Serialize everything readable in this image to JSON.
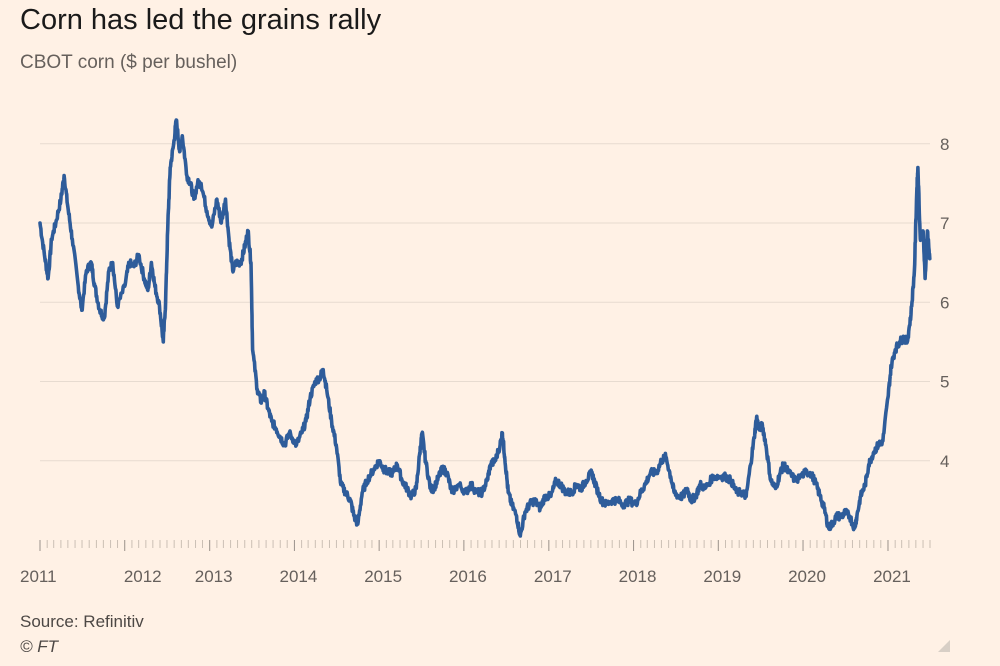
{
  "header": {
    "title": "Corn has led the grains rally",
    "subtitle": "CBOT corn ($ per bushel)"
  },
  "footer": {
    "source": "Source: Refinitiv",
    "credit": "© FT"
  },
  "colors": {
    "background": "#fff1e5",
    "line": "#2e5c9a",
    "grid": "#e7dbd0",
    "axis_text": "#66605c"
  },
  "chart_data": {
    "type": "line",
    "title": "Corn has led the grains rally",
    "ylabel": "CBOT corn ($ per bushel)",
    "xlabel": "",
    "ylim": [
      3.0,
      8.3
    ],
    "y_ticks": [
      4,
      5,
      6,
      7,
      8
    ],
    "x_ticks": [
      "2011",
      "2012",
      "2013",
      "2014",
      "2015",
      "2016",
      "2017",
      "2018",
      "2019",
      "2020",
      "2021"
    ],
    "xlim": [
      "2011-01-01",
      "2021-07-01"
    ],
    "grid": "horizontal",
    "series": [
      {
        "values": [
          [
            "2011-01-01",
            7.0
          ],
          [
            "2011-01-20",
            6.6
          ],
          [
            "2011-02-05",
            6.3
          ],
          [
            "2011-02-20",
            6.8
          ],
          [
            "2011-03-10",
            7.0
          ],
          [
            "2011-04-01",
            7.3
          ],
          [
            "2011-04-15",
            7.6
          ],
          [
            "2011-05-01",
            7.2
          ],
          [
            "2011-05-20",
            6.8
          ],
          [
            "2011-06-15",
            6.2
          ],
          [
            "2011-06-30",
            5.9
          ],
          [
            "2011-07-20",
            6.4
          ],
          [
            "2011-08-10",
            6.5
          ],
          [
            "2011-08-25",
            6.2
          ],
          [
            "2011-09-15",
            5.9
          ],
          [
            "2011-10-05",
            5.8
          ],
          [
            "2011-10-25",
            6.4
          ],
          [
            "2011-11-10",
            6.5
          ],
          [
            "2011-11-30",
            5.95
          ],
          [
            "2012-01-01",
            6.2
          ],
          [
            "2012-01-20",
            6.5
          ],
          [
            "2012-02-10",
            6.45
          ],
          [
            "2012-03-01",
            6.6
          ],
          [
            "2012-03-25",
            6.3
          ],
          [
            "2012-04-10",
            6.15
          ],
          [
            "2012-04-25",
            6.5
          ],
          [
            "2012-05-10",
            6.2
          ],
          [
            "2012-05-30",
            5.95
          ],
          [
            "2012-06-15",
            5.5
          ],
          [
            "2012-06-25",
            6.0
          ],
          [
            "2012-07-05",
            7.0
          ],
          [
            "2012-07-15",
            7.7
          ],
          [
            "2012-07-30",
            8.0
          ],
          [
            "2012-08-10",
            8.3
          ],
          [
            "2012-08-25",
            7.9
          ],
          [
            "2012-09-05",
            8.1
          ],
          [
            "2012-09-25",
            7.6
          ],
          [
            "2012-10-10",
            7.5
          ],
          [
            "2012-10-25",
            7.3
          ],
          [
            "2012-11-10",
            7.5
          ],
          [
            "2012-11-25",
            7.5
          ],
          [
            "2012-12-20",
            7.15
          ],
          [
            "2013-01-10",
            6.95
          ],
          [
            "2013-02-01",
            7.3
          ],
          [
            "2013-02-20",
            7.0
          ],
          [
            "2013-03-10",
            7.3
          ],
          [
            "2013-03-25",
            6.8
          ],
          [
            "2013-04-10",
            6.4
          ],
          [
            "2013-04-25",
            6.5
          ],
          [
            "2013-05-15",
            6.5
          ],
          [
            "2013-06-01",
            6.7
          ],
          [
            "2013-06-15",
            6.9
          ],
          [
            "2013-06-28",
            6.5
          ],
          [
            "2013-07-05",
            5.4
          ],
          [
            "2013-07-25",
            4.9
          ],
          [
            "2013-08-10",
            4.75
          ],
          [
            "2013-08-25",
            4.85
          ],
          [
            "2013-09-10",
            4.65
          ],
          [
            "2013-09-25",
            4.5
          ],
          [
            "2013-10-15",
            4.4
          ],
          [
            "2013-11-01",
            4.3
          ],
          [
            "2013-11-20",
            4.2
          ],
          [
            "2013-12-10",
            4.35
          ],
          [
            "2014-01-10",
            4.2
          ],
          [
            "2014-02-01",
            4.35
          ],
          [
            "2014-02-20",
            4.5
          ],
          [
            "2014-03-10",
            4.8
          ],
          [
            "2014-04-01",
            5.0
          ],
          [
            "2014-04-20",
            5.05
          ],
          [
            "2014-05-05",
            5.15
          ],
          [
            "2014-05-20",
            4.9
          ],
          [
            "2014-06-10",
            4.5
          ],
          [
            "2014-06-30",
            4.2
          ],
          [
            "2014-07-20",
            3.7
          ],
          [
            "2014-08-10",
            3.6
          ],
          [
            "2014-08-30",
            3.5
          ],
          [
            "2014-09-15",
            3.3
          ],
          [
            "2014-10-01",
            3.2
          ],
          [
            "2014-10-20",
            3.6
          ],
          [
            "2014-11-10",
            3.75
          ],
          [
            "2014-12-10",
            3.9
          ],
          [
            "2015-01-01",
            4.0
          ],
          [
            "2015-01-20",
            3.9
          ],
          [
            "2015-02-10",
            3.85
          ],
          [
            "2015-03-01",
            3.85
          ],
          [
            "2015-03-20",
            3.95
          ],
          [
            "2015-04-10",
            3.75
          ],
          [
            "2015-05-01",
            3.65
          ],
          [
            "2015-05-20",
            3.55
          ],
          [
            "2015-06-10",
            3.65
          ],
          [
            "2015-06-25",
            4.1
          ],
          [
            "2015-07-05",
            4.35
          ],
          [
            "2015-07-20",
            4.0
          ],
          [
            "2015-08-10",
            3.65
          ],
          [
            "2015-08-25",
            3.65
          ],
          [
            "2015-09-15",
            3.8
          ],
          [
            "2015-10-01",
            3.9
          ],
          [
            "2015-10-20",
            3.85
          ],
          [
            "2015-11-10",
            3.6
          ],
          [
            "2015-12-10",
            3.7
          ],
          [
            "2016-01-10",
            3.6
          ],
          [
            "2016-02-01",
            3.7
          ],
          [
            "2016-02-25",
            3.6
          ],
          [
            "2016-03-20",
            3.6
          ],
          [
            "2016-04-10",
            3.75
          ],
          [
            "2016-04-25",
            3.95
          ],
          [
            "2016-05-15",
            4.0
          ],
          [
            "2016-06-05",
            4.2
          ],
          [
            "2016-06-15",
            4.35
          ],
          [
            "2016-06-25",
            4.05
          ],
          [
            "2016-07-10",
            3.6
          ],
          [
            "2016-07-25",
            3.45
          ],
          [
            "2016-08-15",
            3.3
          ],
          [
            "2016-08-31",
            3.05
          ],
          [
            "2016-09-20",
            3.35
          ],
          [
            "2016-10-10",
            3.45
          ],
          [
            "2016-11-01",
            3.5
          ],
          [
            "2016-11-25",
            3.4
          ],
          [
            "2016-12-15",
            3.55
          ],
          [
            "2017-01-10",
            3.55
          ],
          [
            "2017-02-01",
            3.75
          ],
          [
            "2017-02-20",
            3.7
          ],
          [
            "2017-03-15",
            3.6
          ],
          [
            "2017-04-10",
            3.6
          ],
          [
            "2017-05-01",
            3.7
          ],
          [
            "2017-05-20",
            3.65
          ],
          [
            "2017-06-10",
            3.75
          ],
          [
            "2017-07-05",
            3.85
          ],
          [
            "2017-07-20",
            3.7
          ],
          [
            "2017-08-15",
            3.5
          ],
          [
            "2017-09-05",
            3.45
          ],
          [
            "2017-10-01",
            3.5
          ],
          [
            "2017-10-25",
            3.5
          ],
          [
            "2017-11-20",
            3.45
          ],
          [
            "2017-12-15",
            3.5
          ],
          [
            "2018-01-10",
            3.45
          ],
          [
            "2018-02-01",
            3.6
          ],
          [
            "2018-02-20",
            3.7
          ],
          [
            "2018-03-15",
            3.85
          ],
          [
            "2018-04-10",
            3.85
          ],
          [
            "2018-05-01",
            4.0
          ],
          [
            "2018-05-20",
            4.05
          ],
          [
            "2018-06-10",
            3.8
          ],
          [
            "2018-06-25",
            3.6
          ],
          [
            "2018-07-15",
            3.55
          ],
          [
            "2018-08-01",
            3.55
          ],
          [
            "2018-08-20",
            3.65
          ],
          [
            "2018-09-05",
            3.5
          ],
          [
            "2018-09-25",
            3.55
          ],
          [
            "2018-10-15",
            3.7
          ],
          [
            "2018-11-05",
            3.65
          ],
          [
            "2018-12-10",
            3.8
          ],
          [
            "2019-01-10",
            3.8
          ],
          [
            "2019-02-01",
            3.8
          ],
          [
            "2019-02-25",
            3.75
          ],
          [
            "2019-03-20",
            3.6
          ],
          [
            "2019-04-15",
            3.6
          ],
          [
            "2019-05-01",
            3.55
          ],
          [
            "2019-05-20",
            3.95
          ],
          [
            "2019-06-05",
            4.3
          ],
          [
            "2019-06-15",
            4.55
          ],
          [
            "2019-06-25",
            4.4
          ],
          [
            "2019-07-10",
            4.45
          ],
          [
            "2019-07-25",
            4.2
          ],
          [
            "2019-08-15",
            3.75
          ],
          [
            "2019-09-05",
            3.65
          ],
          [
            "2019-09-25",
            3.85
          ],
          [
            "2019-10-10",
            3.95
          ],
          [
            "2019-11-01",
            3.85
          ],
          [
            "2019-12-01",
            3.75
          ],
          [
            "2020-01-10",
            3.85
          ],
          [
            "2020-02-01",
            3.85
          ],
          [
            "2020-02-20",
            3.75
          ],
          [
            "2020-03-15",
            3.55
          ],
          [
            "2020-04-01",
            3.4
          ],
          [
            "2020-04-20",
            3.15
          ],
          [
            "2020-05-05",
            3.2
          ],
          [
            "2020-05-25",
            3.3
          ],
          [
            "2020-06-15",
            3.3
          ],
          [
            "2020-07-01",
            3.35
          ],
          [
            "2020-07-20",
            3.3
          ],
          [
            "2020-08-10",
            3.15
          ],
          [
            "2020-08-20",
            3.3
          ],
          [
            "2020-09-05",
            3.55
          ],
          [
            "2020-09-25",
            3.7
          ],
          [
            "2020-10-10",
            3.95
          ],
          [
            "2020-10-30",
            4.1
          ],
          [
            "2020-11-20",
            4.2
          ],
          [
            "2020-12-10",
            4.25
          ],
          [
            "2021-01-01",
            4.8
          ],
          [
            "2021-01-15",
            5.2
          ],
          [
            "2021-02-01",
            5.4
          ],
          [
            "2021-02-20",
            5.5
          ],
          [
            "2021-03-10",
            5.55
          ],
          [
            "2021-03-25",
            5.5
          ],
          [
            "2021-04-10",
            5.85
          ],
          [
            "2021-04-25",
            6.4
          ],
          [
            "2021-05-05",
            7.4
          ],
          [
            "2021-05-10",
            7.7
          ],
          [
            "2021-05-20",
            6.8
          ],
          [
            "2021-06-01",
            6.9
          ],
          [
            "2021-06-10",
            6.3
          ],
          [
            "2021-06-20",
            6.9
          ],
          [
            "2021-06-30",
            6.55
          ]
        ]
      }
    ]
  }
}
